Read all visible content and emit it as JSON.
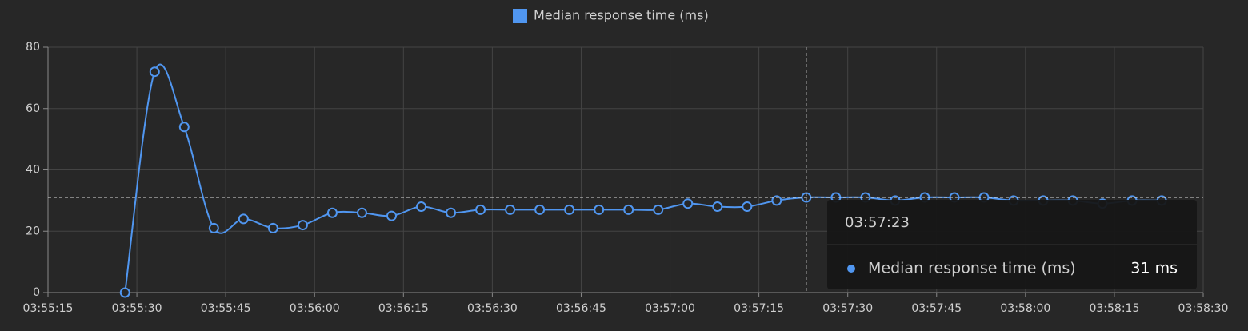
{
  "chart_data": {
    "type": "line",
    "x": [
      "03:55:28",
      "03:55:33",
      "03:55:38",
      "03:55:43",
      "03:55:48",
      "03:55:53",
      "03:55:58",
      "03:56:03",
      "03:56:08",
      "03:56:13",
      "03:56:18",
      "03:56:23",
      "03:56:28",
      "03:56:33",
      "03:56:38",
      "03:56:43",
      "03:56:48",
      "03:56:53",
      "03:56:58",
      "03:57:03",
      "03:57:08",
      "03:57:13",
      "03:57:18",
      "03:57:23",
      "03:57:28",
      "03:57:33",
      "03:57:38",
      "03:57:43",
      "03:57:48",
      "03:57:53",
      "03:57:58",
      "03:58:03",
      "03:58:08",
      "03:58:13",
      "03:58:18",
      "03:58:23"
    ],
    "series": [
      {
        "name": "Median response time (ms)",
        "color": "#5096f0",
        "values": [
          0,
          72,
          54,
          21,
          24,
          21,
          22,
          26,
          26,
          25,
          28,
          26,
          27,
          27,
          27,
          27,
          27,
          27,
          27,
          29,
          28,
          28,
          30,
          31,
          31,
          31,
          30,
          31,
          31,
          31,
          30,
          30,
          30,
          29,
          30,
          30
        ]
      }
    ],
    "xlim": [
      "03:55:15",
      "03:58:30"
    ],
    "xticks": [
      "03:55:15",
      "03:55:30",
      "03:55:45",
      "03:56:00",
      "03:56:15",
      "03:56:30",
      "03:56:45",
      "03:57:00",
      "03:57:15",
      "03:57:30",
      "03:57:45",
      "03:58:00",
      "03:58:15",
      "03:58:30"
    ],
    "ylim": [
      0,
      80
    ],
    "yticks": [
      0,
      20,
      40,
      60,
      80
    ],
    "grid": true,
    "tooltip": {
      "index": 23,
      "value_label": "31 ms"
    }
  }
}
